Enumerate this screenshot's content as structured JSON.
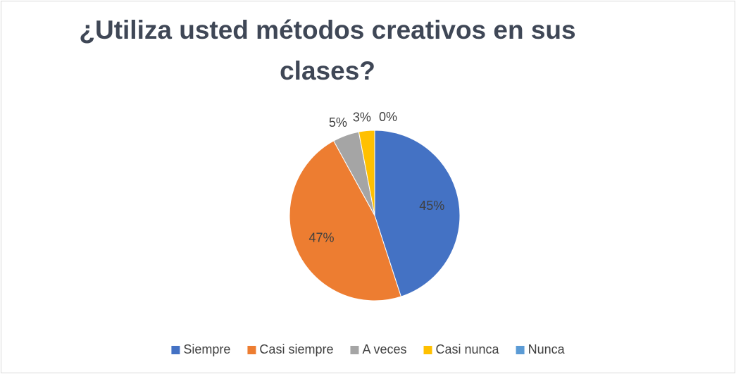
{
  "chart_data": {
    "type": "pie",
    "title": "¿Utiliza usted métodos creativos en sus clases?",
    "categories": [
      "Siempre",
      "Casi siempre",
      "A veces",
      "Casi nunca",
      "Nunca"
    ],
    "values": [
      45,
      47,
      5,
      3,
      0
    ],
    "value_labels": [
      "45%",
      "47%",
      "5%",
      "3%",
      "0%"
    ],
    "colors": [
      "#4472c4",
      "#ed7d31",
      "#a5a5a5",
      "#ffc000",
      "#5b9bd5"
    ],
    "legend": "bottom"
  }
}
